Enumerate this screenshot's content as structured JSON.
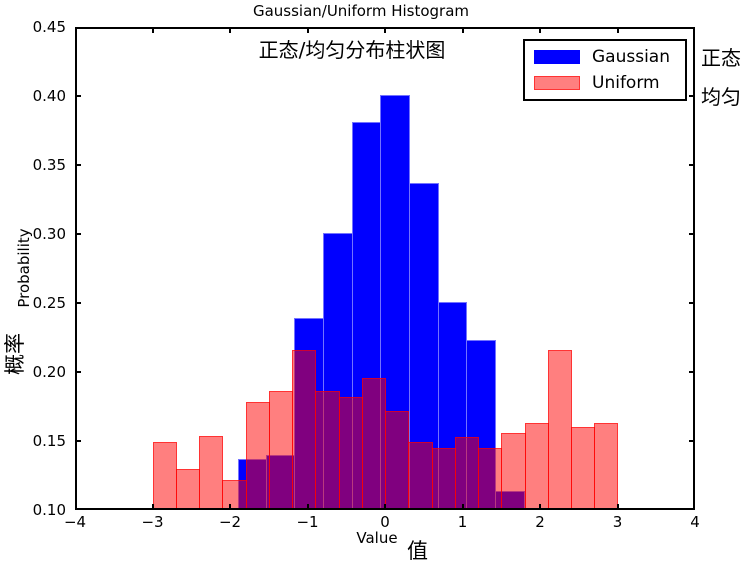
{
  "figure": {
    "title": "Gaussian/Uniform Histogram",
    "subtitle_cn": "正态/均匀分布柱状图",
    "xlabel": "Value",
    "xlabel_cn": "值",
    "ylabel": "Probability",
    "ylabel_cn": "概率",
    "right_label_top": "正态",
    "right_label_bottom": "均匀"
  },
  "legend": {
    "items": [
      {
        "label": "Gaussian",
        "color": "#0000ff",
        "edge": "rgba(210,210,255,0.55)"
      },
      {
        "label": "Uniform",
        "color": "rgba(255,0,0,0.5)",
        "edge": "rgba(255,0,0,0.6)"
      }
    ]
  },
  "axes": {
    "xlim": [
      -4,
      4
    ],
    "ylim": [
      0.1,
      0.45
    ],
    "xtick_values": [
      -4,
      -3,
      -2,
      -1,
      0,
      1,
      2,
      3,
      4
    ],
    "xtick_labels": [
      "−4",
      "−3",
      "−2",
      "−1",
      "0",
      "1",
      "2",
      "3",
      "4"
    ],
    "ytick_values": [
      0.1,
      0.15,
      0.2,
      0.25,
      0.3,
      0.35,
      0.4,
      0.45
    ],
    "ytick_labels": [
      "0.10",
      "0.15",
      "0.20",
      "0.25",
      "0.30",
      "0.35",
      "0.40",
      "0.45"
    ]
  },
  "chart_data": {
    "type": "bar",
    "subtype": "overlaid-histograms",
    "title": "Gaussian/Uniform Histogram",
    "subtitle": "正态/均匀分布柱状图",
    "xlabel": "Value 值",
    "ylabel": "Probability 概率",
    "xlim": [
      -4,
      4
    ],
    "ylim": [
      0.1,
      0.45
    ],
    "grid": false,
    "legend_position": "upper right",
    "series": [
      {
        "name": "Gaussian",
        "color": "#0000ff",
        "opacity": 1.0,
        "bin_edges": [
          -1.9,
          -1.53,
          -1.17,
          -0.8,
          -0.43,
          -0.06,
          0.31,
          0.68,
          1.05,
          1.42,
          1.79
        ],
        "values": [
          0.137,
          0.14,
          0.239,
          0.301,
          0.381,
          0.401,
          0.337,
          0.251,
          0.223,
          0.114
        ]
      },
      {
        "name": "Uniform",
        "color": "#ff0000",
        "opacity": 0.5,
        "bin_edges": [
          -3.0,
          -2.7,
          -2.4,
          -2.1,
          -1.8,
          -1.5,
          -1.2,
          -0.9,
          -0.6,
          -0.3,
          0.0,
          0.3,
          0.6,
          0.9,
          1.2,
          1.5,
          1.8,
          2.1,
          2.4,
          2.7,
          3.0
        ],
        "values": [
          0.149,
          0.13,
          0.154,
          0.122,
          0.178,
          0.186,
          0.216,
          0.186,
          0.182,
          0.196,
          0.172,
          0.149,
          0.145,
          0.153,
          0.145,
          0.156,
          0.163,
          0.216,
          0.16,
          0.163
        ]
      }
    ]
  }
}
